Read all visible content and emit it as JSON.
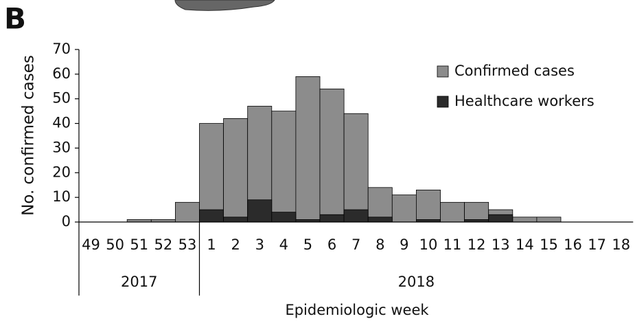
{
  "chart_data": {
    "type": "bar",
    "panel_label": "B",
    "y_label": "No. confirmed cases",
    "x_label": "Epidemiologic week",
    "categories": [
      "49",
      "50",
      "51",
      "52",
      "53",
      "1",
      "2",
      "3",
      "4",
      "5",
      "6",
      "7",
      "8",
      "9",
      "10",
      "11",
      "12",
      "13",
      "14",
      "15",
      "16",
      "17",
      "18"
    ],
    "x_groups": [
      {
        "label": "2017",
        "count": 5
      },
      {
        "label": "2018",
        "count": 18
      }
    ],
    "series": [
      {
        "name": "Confirmed cases",
        "color": "#8c8c8c",
        "values": [
          0,
          0,
          1,
          1,
          8,
          40,
          42,
          47,
          45,
          59,
          54,
          44,
          14,
          11,
          13,
          8,
          8,
          5,
          2,
          2,
          0,
          0,
          0
        ]
      },
      {
        "name": "Healthcare workers",
        "color": "#2b2b2b",
        "values": [
          0,
          0,
          0,
          0,
          0,
          5,
          2,
          9,
          4,
          1,
          3,
          5,
          2,
          0,
          1,
          0,
          1,
          3,
          0,
          0,
          0,
          0,
          0
        ]
      }
    ],
    "overlap": true,
    "ylim": [
      0,
      70
    ],
    "yticks": [
      0,
      10,
      20,
      30,
      40,
      50,
      60,
      70
    ],
    "legend": "upper right"
  }
}
